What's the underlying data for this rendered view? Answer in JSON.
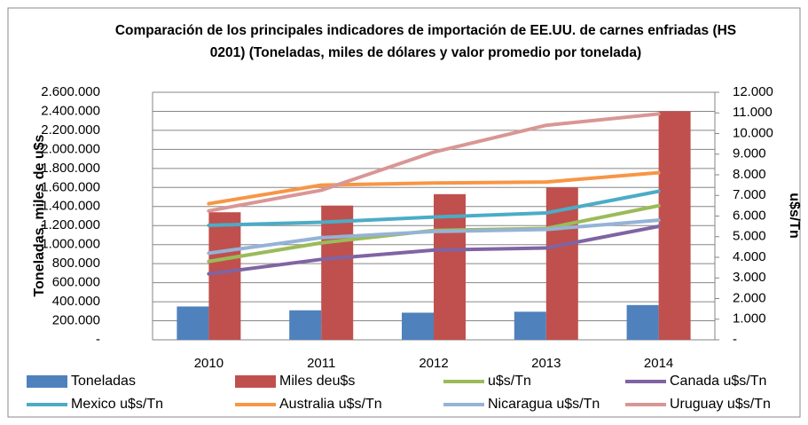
{
  "chart_data": {
    "type": "bar",
    "title": "Comparación de los principales indicadores de importación de EE.UU. de  carnes enfriadas  (HS 0201) (Toneladas, miles de dólares y valor promedio por tonelada)",
    "y_label": "Toneladas, miles de u$s",
    "y2_label": "u$s/Tn",
    "categories": [
      "2010",
      "2011",
      "2012",
      "2013",
      "2014"
    ],
    "series": [
      {
        "name": "Toneladas",
        "type": "bar",
        "color": "#4f81bd",
        "values": [
          350000,
          310000,
          285000,
          295000,
          365000
        ]
      },
      {
        "name": "Miles deu$s",
        "type": "bar",
        "color": "#c0504d",
        "values": [
          1340000,
          1410000,
          1530000,
          1600000,
          2400000
        ]
      },
      {
        "name": "u$s/Tn",
        "type": "line",
        "axis": "y2",
        "color": "#9bbb59",
        "values": [
          3800,
          4700,
          5300,
          5400,
          6500
        ]
      },
      {
        "name": "Canada u$s/Tn",
        "type": "line",
        "axis": "y2",
        "color": "#8064a2",
        "values": [
          3200,
          3900,
          4350,
          4450,
          5500
        ]
      },
      {
        "name": "Mexico u$s/Tn",
        "type": "line",
        "axis": "y2",
        "color": "#4bacc6",
        "values": [
          5550,
          5700,
          5950,
          6150,
          7200
        ]
      },
      {
        "name": "Australia u$s/Tn",
        "type": "line",
        "axis": "y2",
        "color": "#f79646",
        "values": [
          6600,
          7500,
          7600,
          7650,
          8100
        ]
      },
      {
        "name": "Nicaragua u$s/Tn",
        "type": "line",
        "axis": "y2",
        "color": "#95b3d7",
        "values": [
          4200,
          4950,
          5250,
          5350,
          5800
        ]
      },
      {
        "name": "Uruguay u$s/Tn",
        "type": "line",
        "axis": "y2",
        "color": "#d99694",
        "values": [
          6250,
          7250,
          9100,
          10400,
          10950
        ]
      }
    ],
    "ylim": [
      0,
      2600000
    ],
    "yticks": [
      {
        "value": 0,
        "label": "-"
      },
      {
        "value": 200000,
        "label": "200.000"
      },
      {
        "value": 400000,
        "label": "400.000"
      },
      {
        "value": 600000,
        "label": "600.000"
      },
      {
        "value": 800000,
        "label": "800.000"
      },
      {
        "value": 1000000,
        "label": "1.000.000"
      },
      {
        "value": 1200000,
        "label": "1.200.000"
      },
      {
        "value": 1400000,
        "label": "1.400.000"
      },
      {
        "value": 1600000,
        "label": "1.600.000"
      },
      {
        "value": 1800000,
        "label": "1.800.000"
      },
      {
        "value": 2000000,
        "label": "2.000.000"
      },
      {
        "value": 2200000,
        "label": "2.200.000"
      },
      {
        "value": 2400000,
        "label": "2.400.000"
      },
      {
        "value": 2600000,
        "label": "2.600.000"
      }
    ],
    "y2lim": [
      0,
      12000
    ],
    "y2ticks": [
      {
        "value": 0,
        "label": "-"
      },
      {
        "value": 1000,
        "label": "1.000"
      },
      {
        "value": 2000,
        "label": "2.000"
      },
      {
        "value": 3000,
        "label": "3.000"
      },
      {
        "value": 4000,
        "label": "4.000"
      },
      {
        "value": 5000,
        "label": "5.000"
      },
      {
        "value": 6000,
        "label": "6.000"
      },
      {
        "value": 7000,
        "label": "7.000"
      },
      {
        "value": 8000,
        "label": "8.000"
      },
      {
        "value": 9000,
        "label": "9.000"
      },
      {
        "value": 10000,
        "label": "10.000"
      },
      {
        "value": 11000,
        "label": "11.000"
      },
      {
        "value": 12000,
        "label": "12.000"
      }
    ],
    "grid": true,
    "legend": "bottom"
  }
}
